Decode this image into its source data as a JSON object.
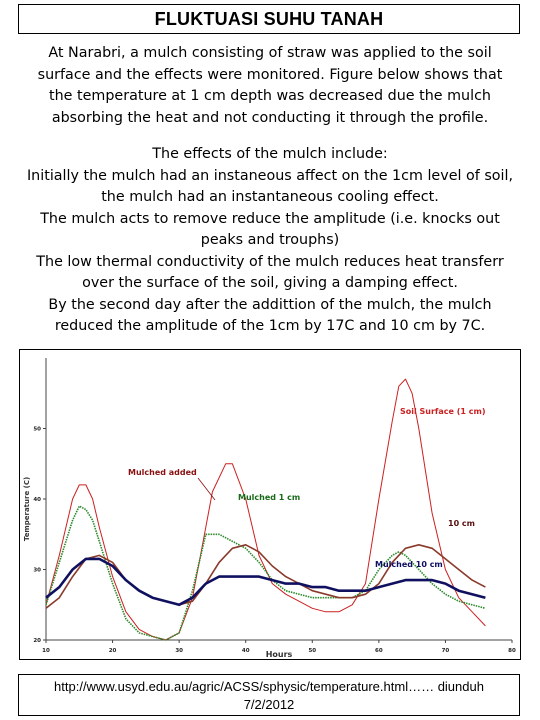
{
  "title": "FLUKTUASI  SUHU TANAH",
  "intro_lines": [
    "At Narabri, a mulch consisting of straw was applied to the soil",
    "surface and the effects were monitored. Figure below shows that",
    "the temperature at 1 cm depth was decreased due the mulch",
    "absorbing the heat and not conducting it through the profile."
  ],
  "effects_lines": [
    "The effects of the mulch include:",
    "Initially the mulch had an instaneous affect on the 1cm level of soil,",
    "the mulch had an instantaneous cooling effect.",
    "The mulch acts to remove reduce the amplitude (i.e. knocks out",
    "peaks and trouphs)",
    "The low thermal conductivity of the mulch reduces heat transferr",
    "over the surface of the soil, giving a damping effect.",
    "By the second day after the addittion of the mulch, the mulch",
    "reduced the amplitude of the 1cm by 17C and 10 cm by 7C."
  ],
  "chart_data": {
    "type": "line",
    "title": "",
    "xlabel": "Hours",
    "ylabel": "Temperature (C)",
    "xlim": [
      10,
      80
    ],
    "ylim": [
      20,
      60
    ],
    "xticks": [
      "10",
      "20",
      "30",
      "40",
      "50",
      "60",
      "70",
      "80"
    ],
    "yticks": [
      "20",
      "30",
      "40",
      "50"
    ],
    "grid": false,
    "annotations": [
      "Mulched added",
      "Mulched 1 cm",
      "10 cm",
      "Mulched 10 cm",
      "Soil Surface (1 cm)"
    ],
    "series": [
      {
        "name": "Soil Surface (1 cm)",
        "color": "#cc2020",
        "x": [
          10,
          12,
          14,
          15,
          16,
          17,
          18,
          20,
          22,
          24,
          26,
          28,
          30,
          32,
          34,
          35,
          37,
          38,
          40,
          42,
          44,
          46,
          48,
          50,
          52,
          54,
          56,
          58,
          60,
          62,
          63,
          64,
          65,
          66,
          68,
          70,
          72,
          74,
          76
        ],
        "y": [
          25,
          32,
          40,
          42,
          42,
          40,
          36,
          29,
          24,
          21.5,
          20.5,
          20,
          21,
          26,
          36,
          41,
          45,
          45,
          40,
          32,
          28,
          26.5,
          25.5,
          24.5,
          24,
          24,
          25,
          28,
          40,
          51,
          56,
          57,
          55,
          50,
          38,
          30,
          26,
          24,
          22
        ]
      },
      {
        "name": "Mulched 1 cm",
        "color": "#2a8a2a",
        "x": [
          10,
          12,
          14,
          15,
          16,
          17,
          18,
          20,
          22,
          24,
          26,
          28,
          30,
          32,
          34,
          36,
          38,
          40,
          42,
          44,
          46,
          48,
          50,
          52,
          54,
          56,
          58,
          60,
          62,
          63,
          64,
          66,
          68,
          70,
          72,
          74,
          76
        ],
        "y": [
          25,
          31,
          37,
          39,
          38.5,
          37,
          34,
          28,
          23,
          21,
          20.5,
          20,
          21,
          27,
          35,
          35,
          34,
          33,
          31,
          28.5,
          27,
          26.5,
          26,
          26,
          26,
          26,
          27,
          30,
          32,
          32.5,
          32,
          30,
          28,
          26.5,
          25.5,
          25,
          24.5
        ]
      },
      {
        "name": "10 cm",
        "color": "#8a3a2a",
        "x": [
          10,
          12,
          14,
          16,
          18,
          20,
          22,
          24,
          26,
          28,
          30,
          32,
          34,
          36,
          38,
          40,
          42,
          44,
          46,
          48,
          50,
          52,
          54,
          56,
          58,
          60,
          62,
          64,
          66,
          68,
          70,
          72,
          74,
          76
        ],
        "y": [
          24.5,
          26,
          29,
          31.5,
          32,
          31,
          28.5,
          27,
          26,
          25.5,
          25,
          25.5,
          28,
          31,
          33,
          33.5,
          32.5,
          30.5,
          29,
          28,
          27,
          26.5,
          26,
          26,
          26.5,
          28,
          31,
          33,
          33.5,
          33,
          31.5,
          30,
          28.5,
          27.5
        ]
      },
      {
        "name": "Mulched 10 cm",
        "color": "#101060",
        "x": [
          10,
          12,
          14,
          16,
          18,
          20,
          22,
          24,
          26,
          28,
          30,
          32,
          34,
          36,
          38,
          40,
          42,
          44,
          46,
          48,
          50,
          52,
          54,
          56,
          58,
          60,
          62,
          64,
          66,
          68,
          70,
          72,
          74,
          76
        ],
        "y": [
          26,
          27.5,
          30,
          31.5,
          31.5,
          30.5,
          28.5,
          27,
          26,
          25.5,
          25,
          26,
          28,
          29,
          29,
          29,
          29,
          28.5,
          28,
          28,
          27.5,
          27.5,
          27,
          27,
          27,
          27.5,
          28,
          28.5,
          28.5,
          28.5,
          28,
          27,
          26.5,
          26
        ]
      }
    ]
  },
  "footer": {
    "url_line": "http://www.usyd.edu.au/agric/ACSS/sphysic/temperature.html……  diunduh",
    "date_line": "7/2/2012"
  }
}
